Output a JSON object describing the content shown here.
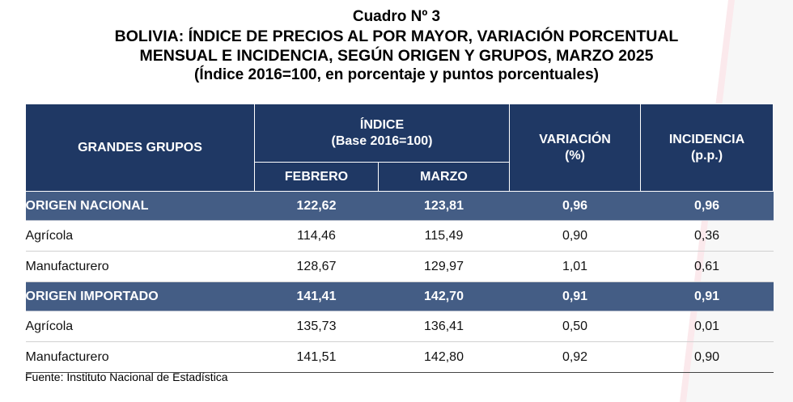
{
  "title": {
    "line1": "Cuadro Nº 3",
    "line2": "BOLIVIA: ÍNDICE DE PRECIOS AL POR MAYOR, VARIACIÓN PORCENTUAL",
    "line3": "MENSUAL E INCIDENCIA, SEGÚN ORIGEN Y GRUPOS, MARZO 2025",
    "line4": "(Índice 2016=100, en porcentaje y puntos porcentuales)"
  },
  "header": {
    "grupos": "GRANDES GRUPOS",
    "indice_line1": "ÍNDICE",
    "indice_line2": "(Base 2016=100)",
    "febrero": "FEBRERO",
    "marzo": "MARZO",
    "variacion_line1": "VARIACIÓN",
    "variacion_line2": "(%)",
    "incidencia_line1": "INCIDENCIA",
    "incidencia_line2": "(p.p.)"
  },
  "rows": [
    {
      "type": "group",
      "label": "ORIGEN NACIONAL",
      "febrero": "122,62",
      "marzo": "123,81",
      "variacion": "0,96",
      "incidencia": "0,96"
    },
    {
      "type": "sub",
      "label": "Agrícola",
      "febrero": "114,46",
      "marzo": "115,49",
      "variacion": "0,90",
      "incidencia": "0,36"
    },
    {
      "type": "sub",
      "label": "Manufacturero",
      "febrero": "128,67",
      "marzo": "129,97",
      "variacion": "1,01",
      "incidencia": "0,61"
    },
    {
      "type": "group",
      "label": "ORIGEN IMPORTADO",
      "febrero": "141,41",
      "marzo": "142,70",
      "variacion": "0,91",
      "incidencia": "0,91"
    },
    {
      "type": "sub",
      "label": "Agrícola",
      "febrero": "135,73",
      "marzo": "136,41",
      "variacion": "0,50",
      "incidencia": "0,01"
    },
    {
      "type": "sub",
      "label": "Manufacturero",
      "febrero": "141,51",
      "marzo": "142,80",
      "variacion": "0,92",
      "incidencia": "0,90"
    }
  ],
  "source": "Fuente: Instituto Nacional de Estadística",
  "colors": {
    "header_bg": "#1f3864",
    "group_bg": "#445d85",
    "accent": "#c8102e"
  }
}
